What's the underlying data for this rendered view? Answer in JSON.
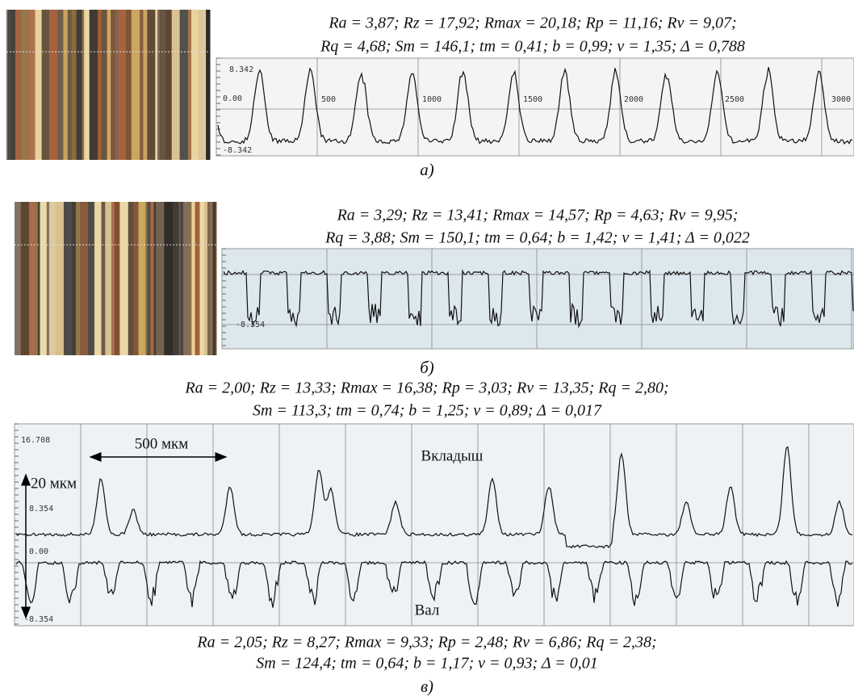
{
  "panels": [
    {
      "label": "а)",
      "params": [
        "Ra = 3,87; Rz = 17,92; Rmax = 20,18;  Rp = 11,16; Rv = 9,07;",
        "Rq = 4,68; Sm = 146,1; tm = 0,41; b = 0,99; ν = 1,35; Δ = 0,788"
      ],
      "y_ticks": [
        "8.342",
        "0.00",
        "-8.342"
      ],
      "x_ticks": [
        "500",
        "1000",
        "1500",
        "2000",
        "2500",
        "3000"
      ]
    },
    {
      "label": "б)",
      "params": [
        "Ra = 3,29; Rz = 13,41; Rmax = 14,57;  Rp = 4,63; Rv = 9,95;",
        "Rq = 3,88; Sm = 150,1; tm = 0,64; b = 1,42; ν = 1,41; Δ = 0,022"
      ],
      "y_ticks": [
        "-8.354"
      ]
    },
    {
      "label": "в)",
      "params_top": [
        "Ra = 2,00; Rz = 13,33; Rmax = 16,38; Rp = 3,03; Rv = 13,35; Rq = 2,80;",
        "Sm = 113,3; tm = 0,74; b = 1,25; ν = 0,89; Δ = 0,017"
      ],
      "params_bottom": [
        "Ra = 2,05; Rz = 8,27; Rmax  = 9,33; Rp = 2,48; Rv = 6,86; Rq = 2,38;",
        "Sm = 124,4; tm = 0,64; b = 1,17; ν = 0,93; Δ = 0,01"
      ],
      "y_ticks": [
        "16.708",
        "8.354",
        "0.00",
        "-8.354"
      ],
      "scale_x": "500 мкм",
      "scale_y": "20 мкм",
      "trace_top": "Вкладыш",
      "trace_bottom": "Вал"
    }
  ]
}
